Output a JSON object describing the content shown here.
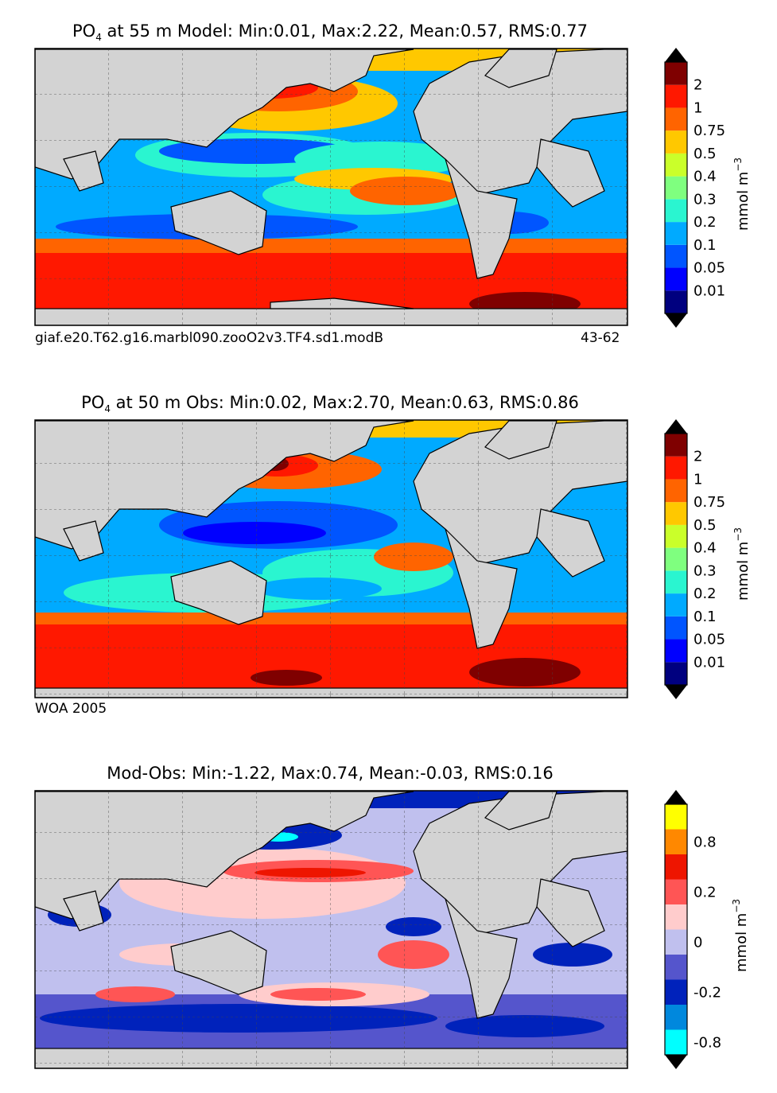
{
  "panels": [
    {
      "title_main": "PO",
      "title_sub": "4",
      "title_rest": " at 55 m Model: Min:0.01, Max:2.22, Mean:0.57, RMS:0.77",
      "caption_left": "giaf.e20.T62.g16.marbl090.zooO2v3.TF4.sd1.modB",
      "caption_right": "43-62",
      "colorbar_labels": [
        "0.01",
        "0.05",
        "0.1",
        "0.2",
        "0.3",
        "0.4",
        "0.5",
        "0.75",
        "1",
        "2"
      ],
      "colorbar_colors": [
        "#00007f",
        "#0000ff",
        "#0055ff",
        "#00aaff",
        "#2af5d0",
        "#7fff7f",
        "#caff2a",
        "#ffc800",
        "#ff6400",
        "#ff1800",
        "#7f0000"
      ],
      "unit": "mmol m",
      "unit_sup": "−3"
    },
    {
      "title_main": "PO",
      "title_sub": "4",
      "title_rest": " at 50 m Obs: Min:0.02, Max:2.70, Mean:0.63, RMS:0.86",
      "caption_left": "WOA 2005",
      "caption_right": "",
      "colorbar_labels": [
        "0.01",
        "0.05",
        "0.1",
        "0.2",
        "0.3",
        "0.4",
        "0.5",
        "0.75",
        "1",
        "2"
      ],
      "colorbar_colors": [
        "#00007f",
        "#0000ff",
        "#0055ff",
        "#00aaff",
        "#2af5d0",
        "#7fff7f",
        "#caff2a",
        "#ffc800",
        "#ff6400",
        "#ff1800",
        "#7f0000"
      ],
      "unit": "mmol m",
      "unit_sup": "−3"
    },
    {
      "title_main": "Mod-Obs: Min:-1.22, Max:0.74, Mean:-0.03, RMS:0.16",
      "title_sub": "",
      "title_rest": "",
      "caption_left": "",
      "caption_right": "",
      "colorbar_labels": [
        "-0.8",
        "-0.2",
        "0",
        "0.2",
        "0.8"
      ],
      "colorbar_colors": [
        "#00ffff",
        "#0088dd",
        "#0022bb",
        "#5555cc",
        "#c0c0ee",
        "#ffcccc",
        "#ff5555",
        "#ee1500",
        "#ff8800",
        "#ffff00"
      ],
      "unit": "mmol m",
      "unit_sup": "−3"
    }
  ],
  "chart_data": [
    {
      "type": "heatmap",
      "title": "PO4 at 55 m Model: Min:0.01, Max:2.22, Mean:0.57, RMS:0.77",
      "variable": "PO4",
      "depth_m": 55,
      "stats": {
        "min": 0.01,
        "max": 2.22,
        "mean": 0.57,
        "rms": 0.77
      },
      "contour_levels": [
        0.01,
        0.05,
        0.1,
        0.2,
        0.3,
        0.4,
        0.5,
        0.75,
        1,
        2
      ],
      "units": "mmol m^-3",
      "run": "giaf.e20.T62.g16.marbl090.zooO2v3.TF4.sd1.modB",
      "years": "43-62"
    },
    {
      "type": "heatmap",
      "title": "PO4 at 50 m Obs: Min:0.02, Max:2.70, Mean:0.63, RMS:0.86",
      "variable": "PO4",
      "depth_m": 50,
      "stats": {
        "min": 0.02,
        "max": 2.7,
        "mean": 0.63,
        "rms": 0.86
      },
      "contour_levels": [
        0.01,
        0.05,
        0.1,
        0.2,
        0.3,
        0.4,
        0.5,
        0.75,
        1,
        2
      ],
      "units": "mmol m^-3",
      "source": "WOA 2005"
    },
    {
      "type": "heatmap",
      "title": "Mod-Obs: Min:-1.22, Max:0.74, Mean:-0.03, RMS:0.16",
      "stats": {
        "min": -1.22,
        "max": 0.74,
        "mean": -0.03,
        "rms": 0.16
      },
      "contour_levels": [
        -0.8,
        -0.5,
        -0.2,
        -0.1,
        0,
        0.1,
        0.2,
        0.5,
        0.8
      ],
      "colorbar_ticks": [
        -0.8,
        -0.2,
        0,
        0.2,
        0.8
      ],
      "units": "mmol m^-3"
    }
  ]
}
